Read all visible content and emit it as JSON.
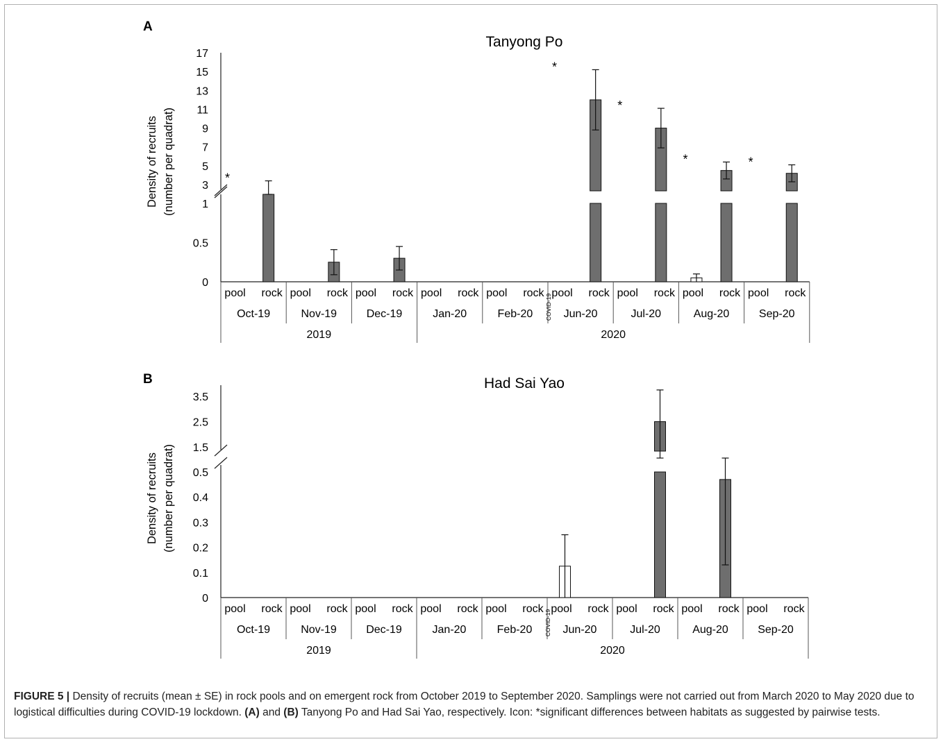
{
  "chart_data": [
    {
      "type": "bar",
      "panel": "A",
      "title": "Tanyong Po",
      "ylabel_line1": "Density of recruits",
      "ylabel_line2": "(number per quadrat)",
      "lower_ticks": [
        "0",
        "0.5",
        "1"
      ],
      "upper_ticks": [
        "3",
        "5",
        "7",
        "9",
        "11",
        "13",
        "15",
        "17"
      ],
      "habitats": [
        "pool",
        "rock"
      ],
      "months": [
        "Oct-19",
        "Nov-19",
        "Dec-19",
        "Jan-20",
        "Feb-20",
        "Jun-20",
        "Jul-20",
        "Aug-20",
        "Sep-20"
      ],
      "years": [
        {
          "label": "2019",
          "months": 3
        },
        {
          "label": "2020",
          "months": 6
        }
      ],
      "gap_label": "COVID-19",
      "series": [
        {
          "name": "pool",
          "values": [
            0,
            0,
            0,
            0,
            0,
            0,
            0,
            0.05,
            0
          ],
          "se": [
            0,
            0,
            0,
            0,
            0,
            0,
            0,
            0.05,
            0
          ]
        },
        {
          "name": "rock",
          "values": [
            2.9,
            0.25,
            0.3,
            0,
            0,
            12,
            9,
            4.5,
            4.2
          ],
          "se": [
            0.5,
            0.16,
            0.15,
            0,
            0,
            3.2,
            2.1,
            0.9,
            0.9
          ]
        }
      ],
      "significant": [
        true,
        false,
        false,
        false,
        false,
        true,
        true,
        true,
        true
      ],
      "star": "*"
    },
    {
      "type": "bar",
      "panel": "B",
      "title": "Had Sai Yao",
      "ylabel_line1": "Density of recruits",
      "ylabel_line2": "(number per quadrat)",
      "lower_ticks": [
        "0",
        "0.1",
        "0.2",
        "0.3",
        "0.4",
        "0.5"
      ],
      "upper_ticks": [
        "1.5",
        "2.5",
        "3.5"
      ],
      "habitats": [
        "pool",
        "rock"
      ],
      "months": [
        "Oct-19",
        "Nov-19",
        "Dec-19",
        "Jan-20",
        "Feb-20",
        "Jun-20",
        "Jul-20",
        "Aug-20",
        "Sep-20"
      ],
      "years": [
        {
          "label": "2019",
          "months": 3
        },
        {
          "label": "2020",
          "months": 6
        }
      ],
      "gap_label": "COVID-19",
      "series": [
        {
          "name": "pool",
          "values": [
            0,
            0,
            0,
            0,
            0,
            0.125,
            0,
            0,
            0
          ],
          "se": [
            0,
            0,
            0,
            0,
            0,
            0.125,
            0,
            0,
            0
          ]
        },
        {
          "name": "rock",
          "values": [
            0,
            0,
            0,
            0,
            0,
            0,
            2.5,
            0.47,
            0
          ],
          "se": [
            0,
            0,
            0,
            0,
            0,
            0,
            1.25,
            0.34,
            0
          ]
        }
      ],
      "significant": [
        false,
        false,
        false,
        false,
        false,
        false,
        false,
        false,
        false
      ],
      "star": "*"
    }
  ],
  "caption": {
    "figure_label": "FIGURE 5 |",
    "part1": " Density of recruits (mean ± SE) in rock pools and on emergent rock from October 2019 to September 2020. Samplings were not carried out from March 2020 to May 2020 due to logistical difficulties during COVID-19 lockdown. ",
    "ref_a": "(A)",
    "part2": " and ",
    "ref_b": "(B)",
    "part3": " Tanyong Po and Had Sai Yao, respectively. Icon: *significant differences between habitats as suggested by pairwise tests."
  },
  "colors": {
    "rock_fill": "#6e6e6e",
    "pool_fill": "#ffffff",
    "bar_stroke": "#111111",
    "frame": "#b0b0b0"
  }
}
